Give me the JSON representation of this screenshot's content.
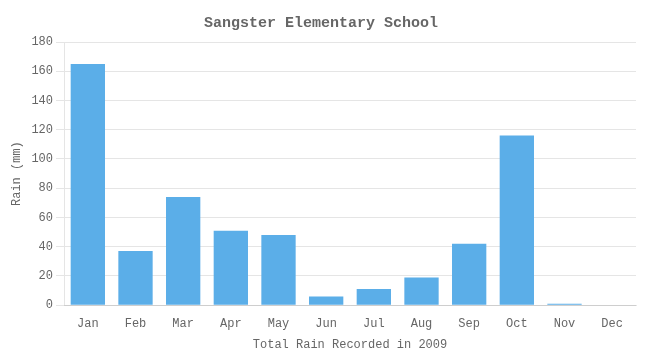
{
  "chart_data": {
    "type": "bar",
    "title": "Sangster Elementary School",
    "xlabel": "Total Rain Recorded in 2009",
    "ylabel": "Rain (mm)",
    "categories": [
      "Jan",
      "Feb",
      "Mar",
      "Apr",
      "May",
      "Jun",
      "Jul",
      "Aug",
      "Sep",
      "Oct",
      "Nov",
      "Dec"
    ],
    "values": [
      165,
      37,
      74,
      51,
      48,
      6,
      11,
      19,
      42,
      116,
      1,
      0
    ],
    "color": "#5BAEE8",
    "ylim": [
      0,
      180
    ],
    "yticks": [
      0,
      20,
      40,
      60,
      80,
      100,
      120,
      140,
      160,
      180
    ],
    "grid": true
  }
}
